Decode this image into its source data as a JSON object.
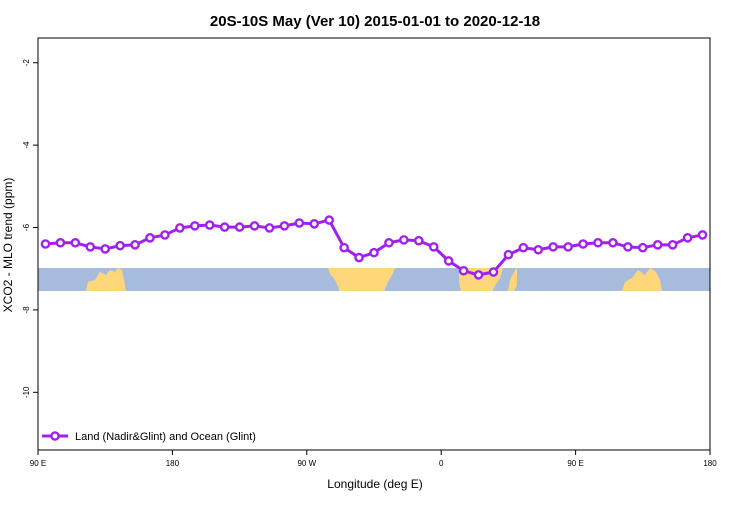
{
  "chart_data": {
    "type": "line",
    "title": "20S-10S May (Ver 10)   2015-01-01 to 2020-12-18",
    "xlabel": "Longitude (deg E)",
    "ylabel": "XCO2 - MLO trend (ppm)",
    "xlim": [
      90,
      540
    ],
    "xticks": [
      {
        "value": 90,
        "label": "90 E"
      },
      180,
      {
        "value": 270,
        "label": "90 W"
      },
      {
        "value": 360,
        "label": "0"
      },
      {
        "value": 450,
        "label": "90 E"
      },
      180
    ],
    "ylim": [
      -11.4,
      -1.4
    ],
    "yticks": [
      -2,
      -4,
      -6,
      -8,
      -10
    ],
    "legend": "bottom-left",
    "x": [
      95,
      105,
      115,
      125,
      135,
      145,
      155,
      165,
      175,
      185,
      195,
      205,
      215,
      225,
      235,
      245,
      255,
      265,
      275,
      285,
      295,
      305,
      315,
      325,
      335,
      345,
      355,
      365,
      375,
      385,
      395,
      405,
      415,
      425,
      435,
      445,
      455,
      465,
      475,
      485,
      495,
      505,
      515,
      525,
      535
    ],
    "series": [
      {
        "name": "Land (Nadir&Glint) and Ocean (Glint)",
        "color": "#a020f0",
        "values": [
          -6.4,
          -6.37,
          -6.37,
          -6.47,
          -6.52,
          -6.44,
          -6.42,
          -6.25,
          -6.18,
          -6.01,
          -5.96,
          -5.94,
          -5.99,
          -5.99,
          -5.96,
          -6.01,
          -5.96,
          -5.89,
          -5.91,
          -5.82,
          -6.49,
          -6.73,
          -6.61,
          -6.37,
          -6.3,
          -6.32,
          -6.47,
          -6.81,
          -7.05,
          -7.15,
          -7.08,
          -6.66,
          -6.49,
          -6.54,
          -6.47,
          -6.47,
          -6.4,
          -6.37,
          -6.37,
          -6.47,
          -6.49,
          -6.42,
          -6.42,
          -6.25,
          -6.18
        ]
      }
    ]
  }
}
